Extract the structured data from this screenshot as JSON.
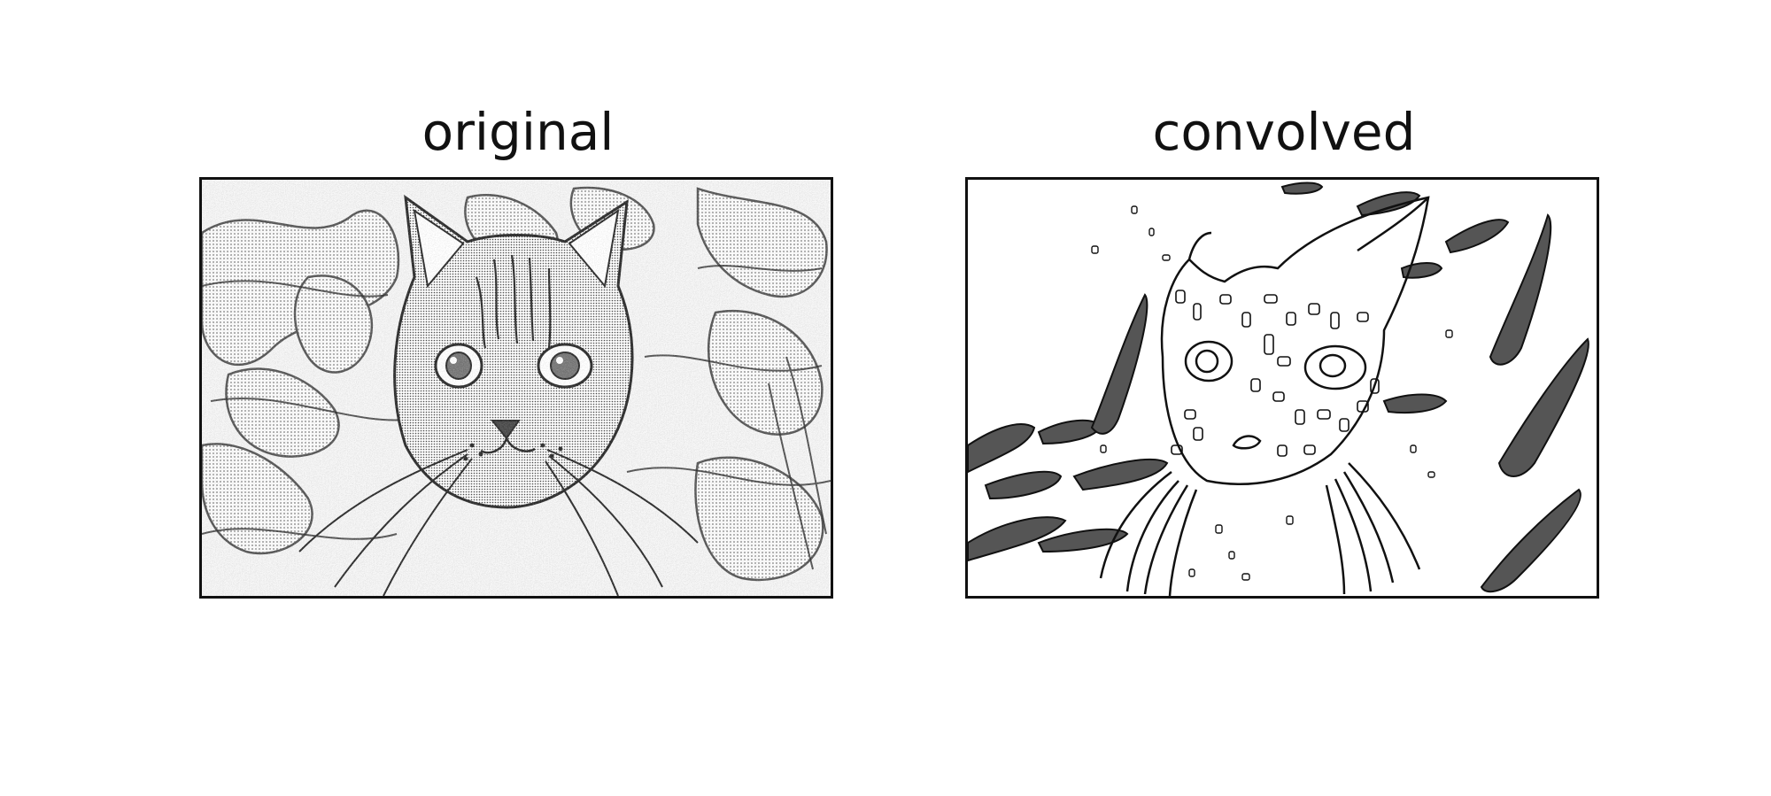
{
  "panels": [
    {
      "title": "original"
    },
    {
      "title": "convolved"
    }
  ],
  "colors": {
    "background": "#ffffff",
    "ink": "#111111"
  }
}
